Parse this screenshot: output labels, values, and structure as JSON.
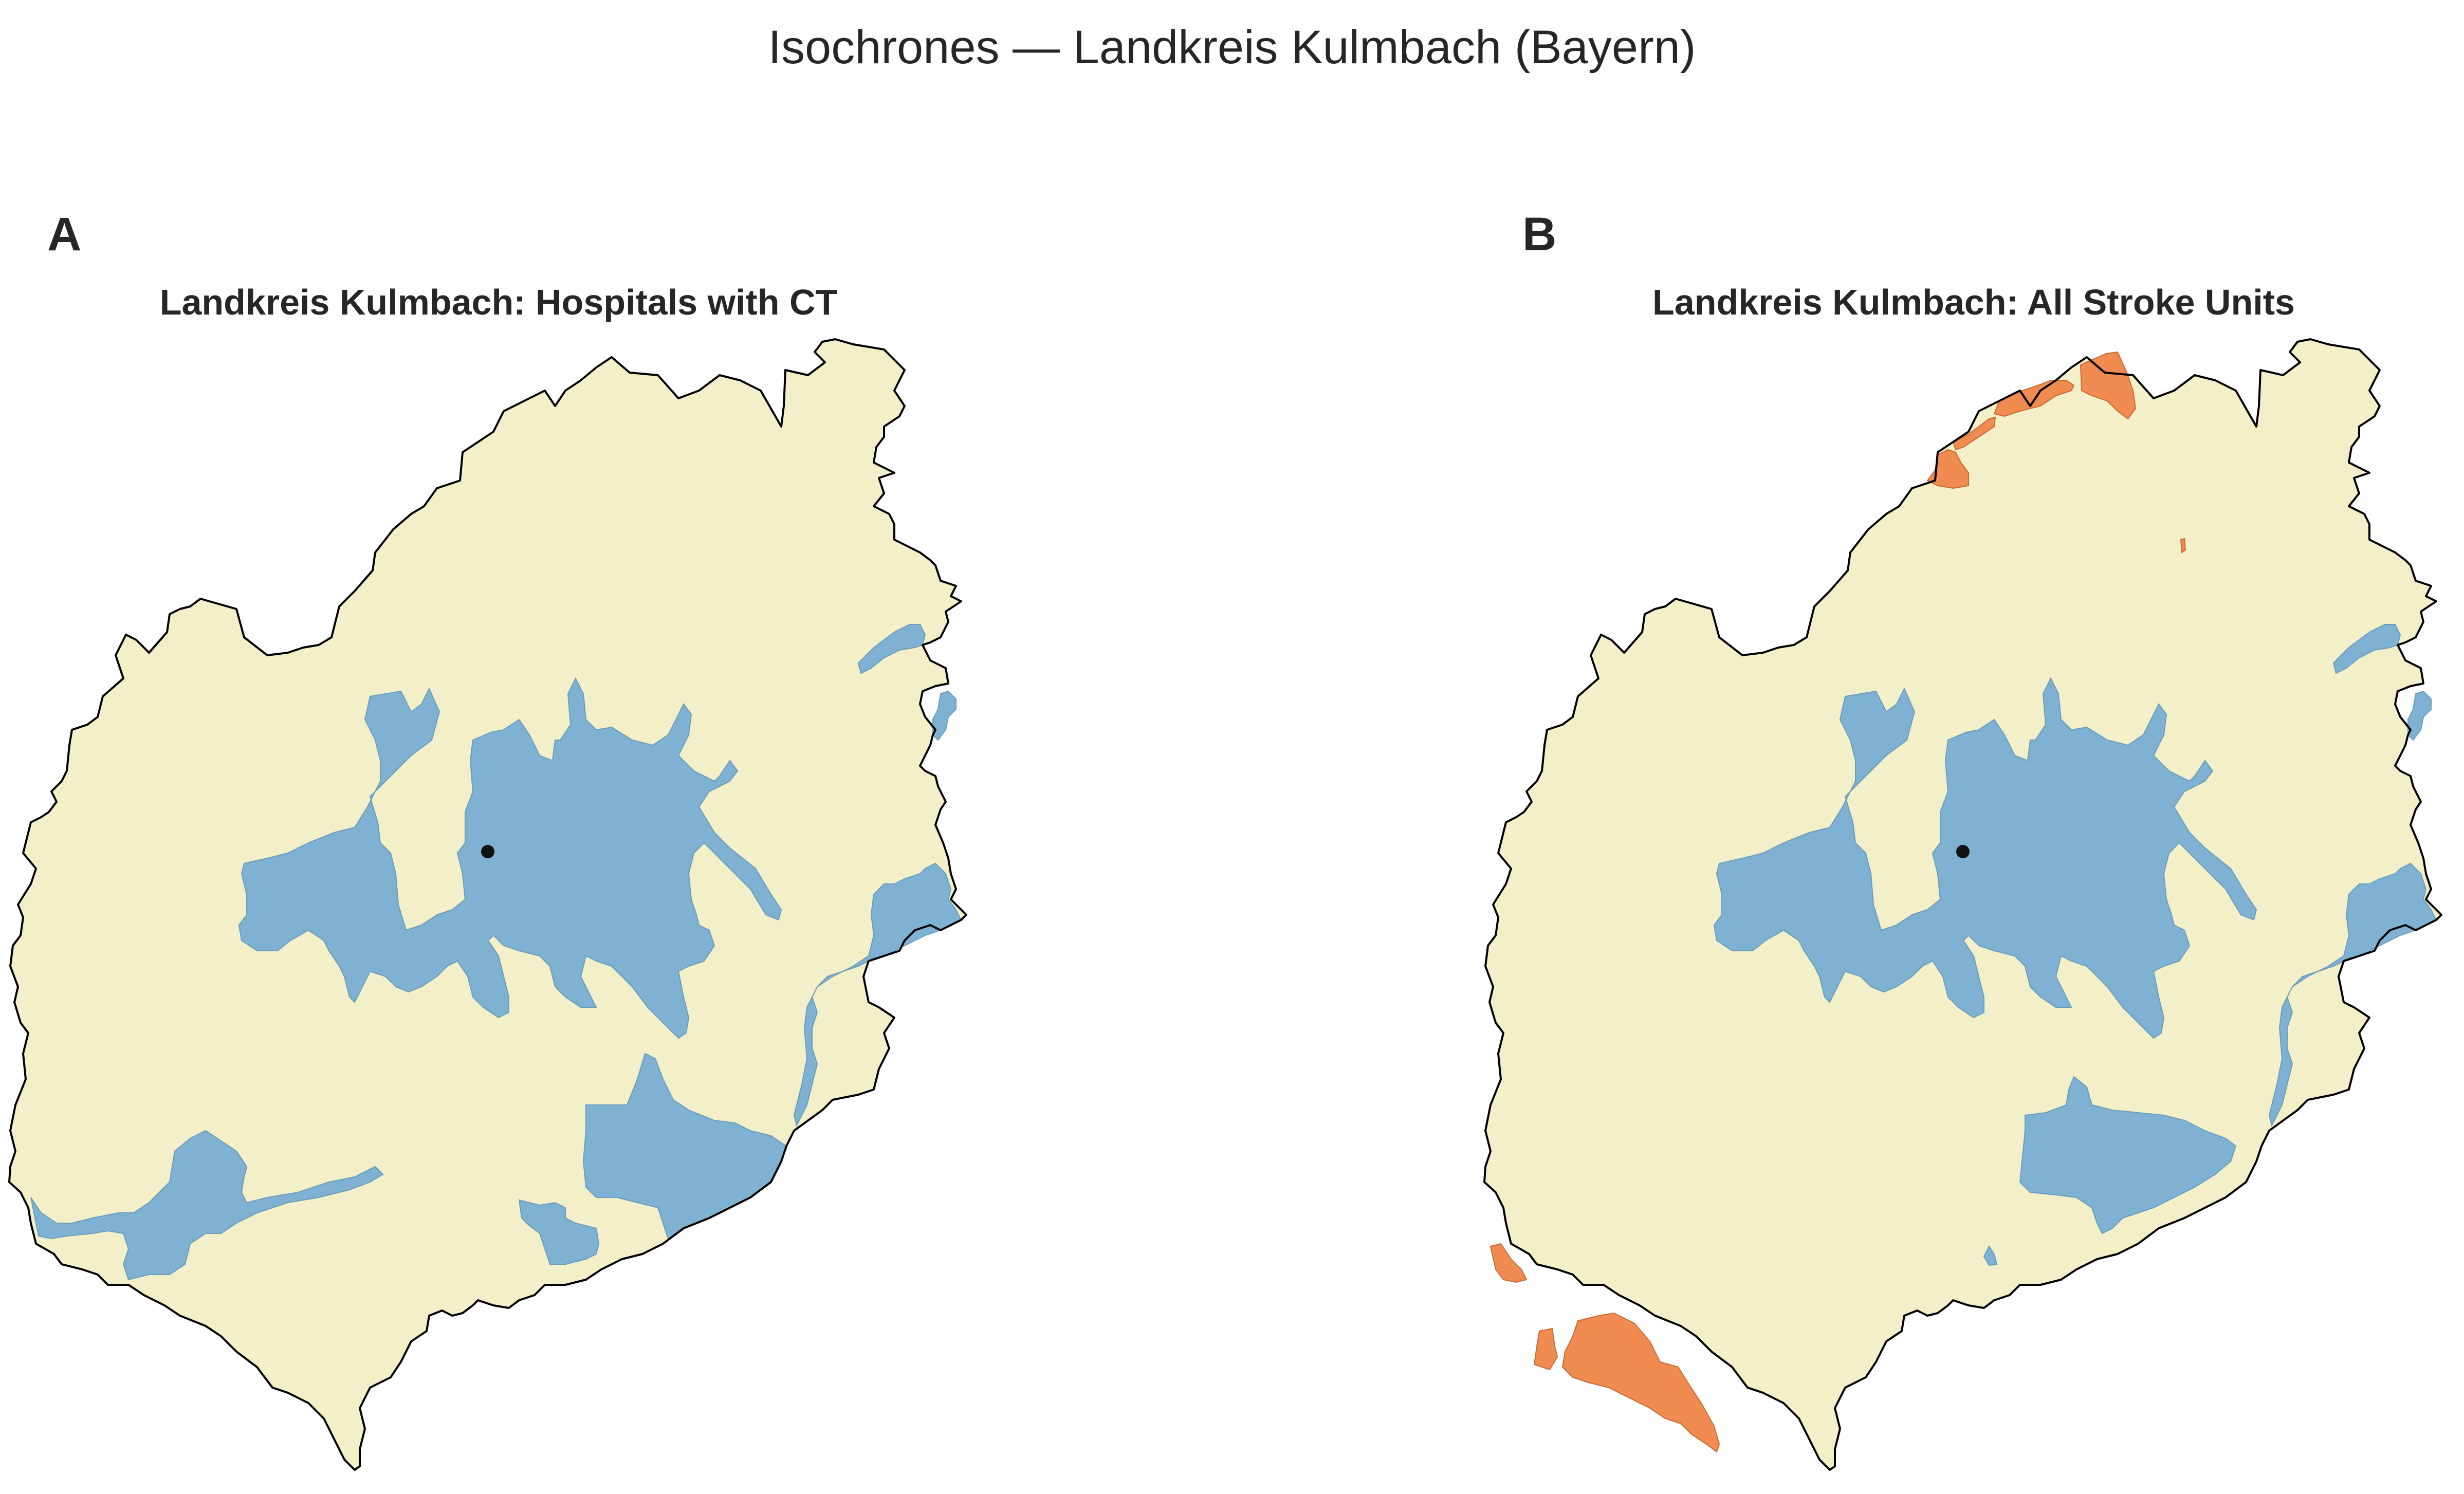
{
  "figure": {
    "title": "Isochrones — Landkreis Kulmbach (Bayern)"
  },
  "colors": {
    "district_fill": "#f3efc8",
    "within_time_fill": "#7fb2d2",
    "outside_time_fill": "#f08b51",
    "boundary": "#000000",
    "facility_marker": "#111111"
  },
  "panels": [
    {
      "letter": "A",
      "title": "Landkreis Kulmbach: Hospitals with CT",
      "facility_count_shown": 1,
      "regions_shown": [
        "district",
        "within reach (blue)"
      ]
    },
    {
      "letter": "B",
      "title": "Landkreis Kulmbach: All Stroke Units",
      "facility_count_shown": 1,
      "regions_shown": [
        "district",
        "within reach (blue)",
        "farther (orange)"
      ]
    }
  ]
}
